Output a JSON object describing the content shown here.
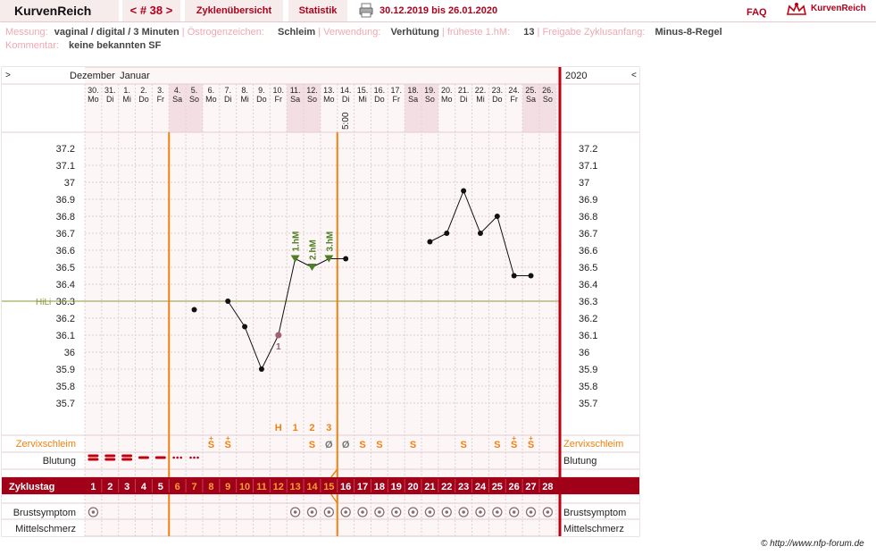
{
  "header": {
    "brand": "KurvenReich",
    "cycle_nav": "< # 38 >",
    "tab_overview": "Zyklenübersicht",
    "tab_stats": "Statistik",
    "date_range": "30.12.2019 bis 26.01.2020",
    "faq": "FAQ",
    "logo_text": "KurvenReich"
  },
  "meta": {
    "messung_label": "Messung:",
    "messung_value": "vaginal / digital / 3 Minuten",
    "oestrogen_label": "Östrogenzeichen:",
    "oestrogen_value": "Schleim",
    "verwendung_label": "Verwendung:",
    "verwendung_value": "Verhütung",
    "hm_label": "früheste 1.hM:",
    "hm_value": "13",
    "freigabe_label": "Freigabe Zyklusanfang:",
    "freigabe_value": "Minus-8-Regel",
    "kommentar_label": "Kommentar:",
    "kommentar_value": "keine bekannten SF"
  },
  "chart_data": {
    "type": "line",
    "title": "",
    "months": [
      "Dezember",
      "Januar"
    ],
    "year_label": "2020",
    "nav_left": ">",
    "nav_right": "<",
    "dates": [
      "30.",
      "31.",
      "1.",
      "2.",
      "3.",
      "4.",
      "5.",
      "6.",
      "7.",
      "8.",
      "9.",
      "10.",
      "11.",
      "12.",
      "13.",
      "14.",
      "15.",
      "16.",
      "17.",
      "18.",
      "19.",
      "20.",
      "21.",
      "22.",
      "23.",
      "24.",
      "25.",
      "26."
    ],
    "weekdays": [
      "Mo",
      "Di",
      "Mi",
      "Do",
      "Fr",
      "Sa",
      "So",
      "Mo",
      "Di",
      "Mi",
      "Do",
      "Fr",
      "Sa",
      "So",
      "Mo",
      "Di",
      "Mi",
      "Do",
      "Fr",
      "Sa",
      "So",
      "Mo",
      "Di",
      "Mi",
      "Do",
      "Fr",
      "Sa",
      "So"
    ],
    "weekend_days": [
      6,
      7,
      13,
      14,
      20,
      21,
      27,
      28
    ],
    "time_annotation": {
      "day": 16,
      "text": "5:00"
    },
    "y_ticks": [
      37.2,
      37.1,
      37,
      36.9,
      36.8,
      36.7,
      36.6,
      36.5,
      36.4,
      36.3,
      36.2,
      36.1,
      36,
      35.9,
      35.8,
      35.7
    ],
    "ylim": [
      35.63,
      37.26
    ],
    "temperatures": [
      null,
      null,
      null,
      null,
      null,
      null,
      36.25,
      null,
      36.3,
      36.15,
      35.9,
      36.1,
      36.55,
      36.5,
      36.55,
      36.55,
      null,
      null,
      null,
      null,
      36.65,
      36.7,
      36.95,
      36.7,
      36.8,
      36.45,
      36.45,
      null
    ],
    "coverline": {
      "label": "HiLi",
      "value": 36.3
    },
    "high_markers": [
      {
        "day": 13,
        "label": "1.hM"
      },
      {
        "day": 14,
        "label": "2.hM"
      },
      {
        "day": 15,
        "label": "3.hM"
      }
    ],
    "excluded_marker": {
      "day": 12,
      "label": "1"
    },
    "orange_lines_days": [
      6,
      16
    ],
    "mucus_peak": [
      {
        "day": 12,
        "label": "H"
      },
      {
        "day": 13,
        "label": "1"
      },
      {
        "day": 14,
        "label": "2"
      },
      {
        "day": 15,
        "label": "3"
      }
    ],
    "zervix_label": "Zervixschleim",
    "zervix": [
      "",
      "",
      "",
      "",
      "",
      "",
      "",
      "S+",
      "S+",
      "",
      "",
      "",
      "",
      "S",
      "Ø",
      "Ø",
      "S",
      "S",
      "",
      "S",
      "",
      "",
      "S",
      "",
      "S",
      "S+",
      "S+",
      ""
    ],
    "blutung_label": "Blutung",
    "blutung": [
      "stark",
      "stark",
      "stark",
      "mittel",
      "mittel",
      "leicht",
      "leicht",
      "",
      "",
      "",
      "",
      "",
      "",
      "",
      "",
      "",
      "",
      "",
      "",
      "",
      "",
      "",
      "",
      "",
      "",
      "",
      "",
      ""
    ],
    "zyklustag_label": "Zyklustag",
    "cycle_days": [
      "1",
      "2",
      "3",
      "4",
      "5",
      "6",
      "7",
      "8",
      "9",
      "10",
      "11",
      "12",
      "13",
      "14",
      "15",
      "16",
      "17",
      "18",
      "19",
      "20",
      "21",
      "22",
      "23",
      "24",
      "25",
      "26",
      "27",
      "28"
    ],
    "brust_label": "Brustsymptom",
    "brust_days": [
      1,
      13,
      14,
      15,
      16,
      17,
      18,
      19,
      20,
      21,
      22,
      23,
      24,
      25,
      26,
      27,
      28
    ],
    "mittel_label": "Mittelschmerz",
    "colors": {
      "temp_line": "#111111",
      "coverline": "#8a9a3a",
      "orange": "#f08010",
      "red": "#c00010",
      "zyklus_bar": "#a00018",
      "green": "#4f7f25"
    }
  },
  "footer": {
    "copyright": "© http://www.nfp-forum.de"
  }
}
